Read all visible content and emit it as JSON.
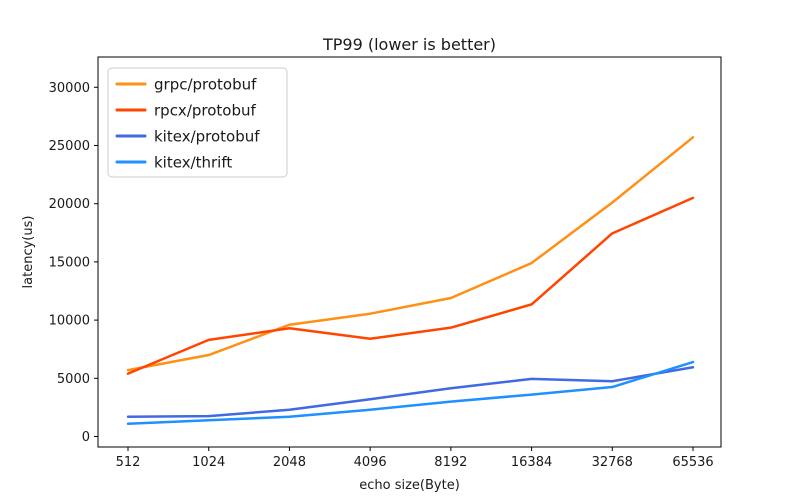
{
  "figure": {
    "background": "#ffffff",
    "spine_color": "#000000",
    "text_color": "#1a1a1a",
    "legend_border_color": "#cccccc"
  },
  "chart_data": {
    "type": "line",
    "title": "TP99 (lower is better)",
    "xlabel": "echo size(Byte)",
    "ylabel": "latency(us)",
    "categories": [
      "512",
      "1024",
      "2048",
      "4096",
      "8192",
      "16384",
      "32768",
      "65536"
    ],
    "y_ticks": [
      0,
      5000,
      10000,
      15000,
      20000,
      25000,
      30000
    ],
    "ylim": [
      -900,
      32600
    ],
    "grid": false,
    "legend_position": "upper left",
    "series": [
      {
        "name": "grpc/protobuf",
        "color": "#FF9015",
        "values": [
          5700,
          7000,
          9600,
          10550,
          11900,
          14900,
          20100,
          25700
        ]
      },
      {
        "name": "rpcx/protobuf",
        "color": "#FF4500",
        "values": [
          5400,
          8300,
          9300,
          8400,
          9350,
          11350,
          17450,
          20500
        ]
      },
      {
        "name": "kitex/protobuf",
        "color": "#4169E1",
        "values": [
          1700,
          1750,
          2300,
          3200,
          4150,
          4950,
          4750,
          5950
        ]
      },
      {
        "name": "kitex/thrift",
        "color": "#1E90FF",
        "values": [
          1100,
          1400,
          1700,
          2300,
          3000,
          3600,
          4250,
          6400
        ]
      }
    ]
  }
}
